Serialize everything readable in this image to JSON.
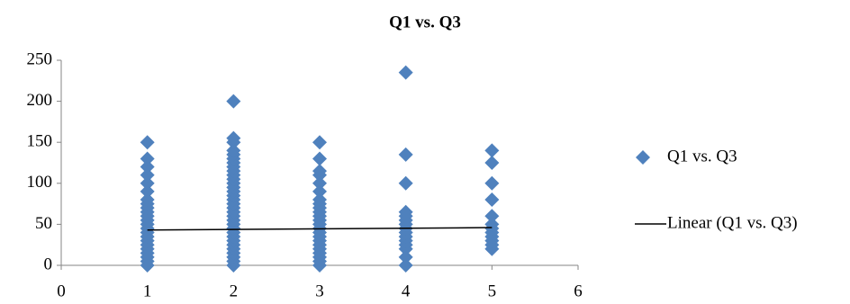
{
  "chart_data": {
    "type": "scatter",
    "title": "Q1 vs. Q3",
    "xlim": [
      0,
      6
    ],
    "xticks": [
      0,
      1,
      2,
      3,
      4,
      5,
      6
    ],
    "ylim": [
      0,
      250
    ],
    "yticks": [
      0,
      50,
      100,
      150,
      200,
      250
    ],
    "grid": false,
    "legend": "right",
    "series": [
      {
        "name": "Q1 vs. Q3",
        "color": "#4f81bd",
        "mode": "markers",
        "x": [
          1,
          1,
          1,
          1,
          1,
          1,
          1,
          1,
          1,
          1,
          1,
          1,
          1,
          1,
          1,
          1,
          1,
          1,
          1,
          1,
          1,
          1,
          1,
          2,
          2,
          2,
          2,
          2,
          2,
          2,
          2,
          2,
          2,
          2,
          2,
          2,
          2,
          2,
          2,
          2,
          2,
          2,
          2,
          2,
          2,
          2,
          2,
          2,
          2,
          2,
          2,
          2,
          2,
          2,
          2,
          3,
          3,
          3,
          3,
          3,
          3,
          3,
          3,
          3,
          3,
          3,
          3,
          3,
          3,
          3,
          3,
          3,
          3,
          3,
          3,
          3,
          3,
          3,
          4,
          4,
          4,
          4,
          4,
          4,
          4,
          4,
          4,
          4,
          4,
          4,
          4,
          4,
          4,
          5,
          5,
          5,
          5,
          5,
          5,
          5,
          5,
          5,
          5,
          5,
          5
        ],
        "values": [
          0,
          5,
          10,
          15,
          20,
          25,
          30,
          35,
          40,
          45,
          50,
          55,
          60,
          65,
          70,
          75,
          80,
          90,
          100,
          110,
          120,
          130,
          150,
          0,
          5,
          10,
          15,
          20,
          25,
          30,
          35,
          40,
          45,
          50,
          55,
          60,
          65,
          70,
          75,
          80,
          85,
          90,
          95,
          100,
          105,
          110,
          115,
          120,
          125,
          130,
          135,
          140,
          150,
          155,
          200,
          0,
          5,
          10,
          15,
          20,
          25,
          30,
          35,
          40,
          45,
          50,
          55,
          60,
          65,
          70,
          75,
          80,
          90,
          100,
          110,
          115,
          130,
          150,
          0,
          10,
          20,
          25,
          30,
          35,
          40,
          45,
          50,
          55,
          60,
          65,
          100,
          135,
          235,
          20,
          25,
          30,
          35,
          40,
          45,
          50,
          60,
          80,
          100,
          125,
          140
        ]
      },
      {
        "name": "Linear (Q1 vs. Q3)",
        "color": "#000000",
        "mode": "line",
        "x": [
          1,
          5
        ],
        "values": [
          43,
          46
        ]
      }
    ]
  }
}
